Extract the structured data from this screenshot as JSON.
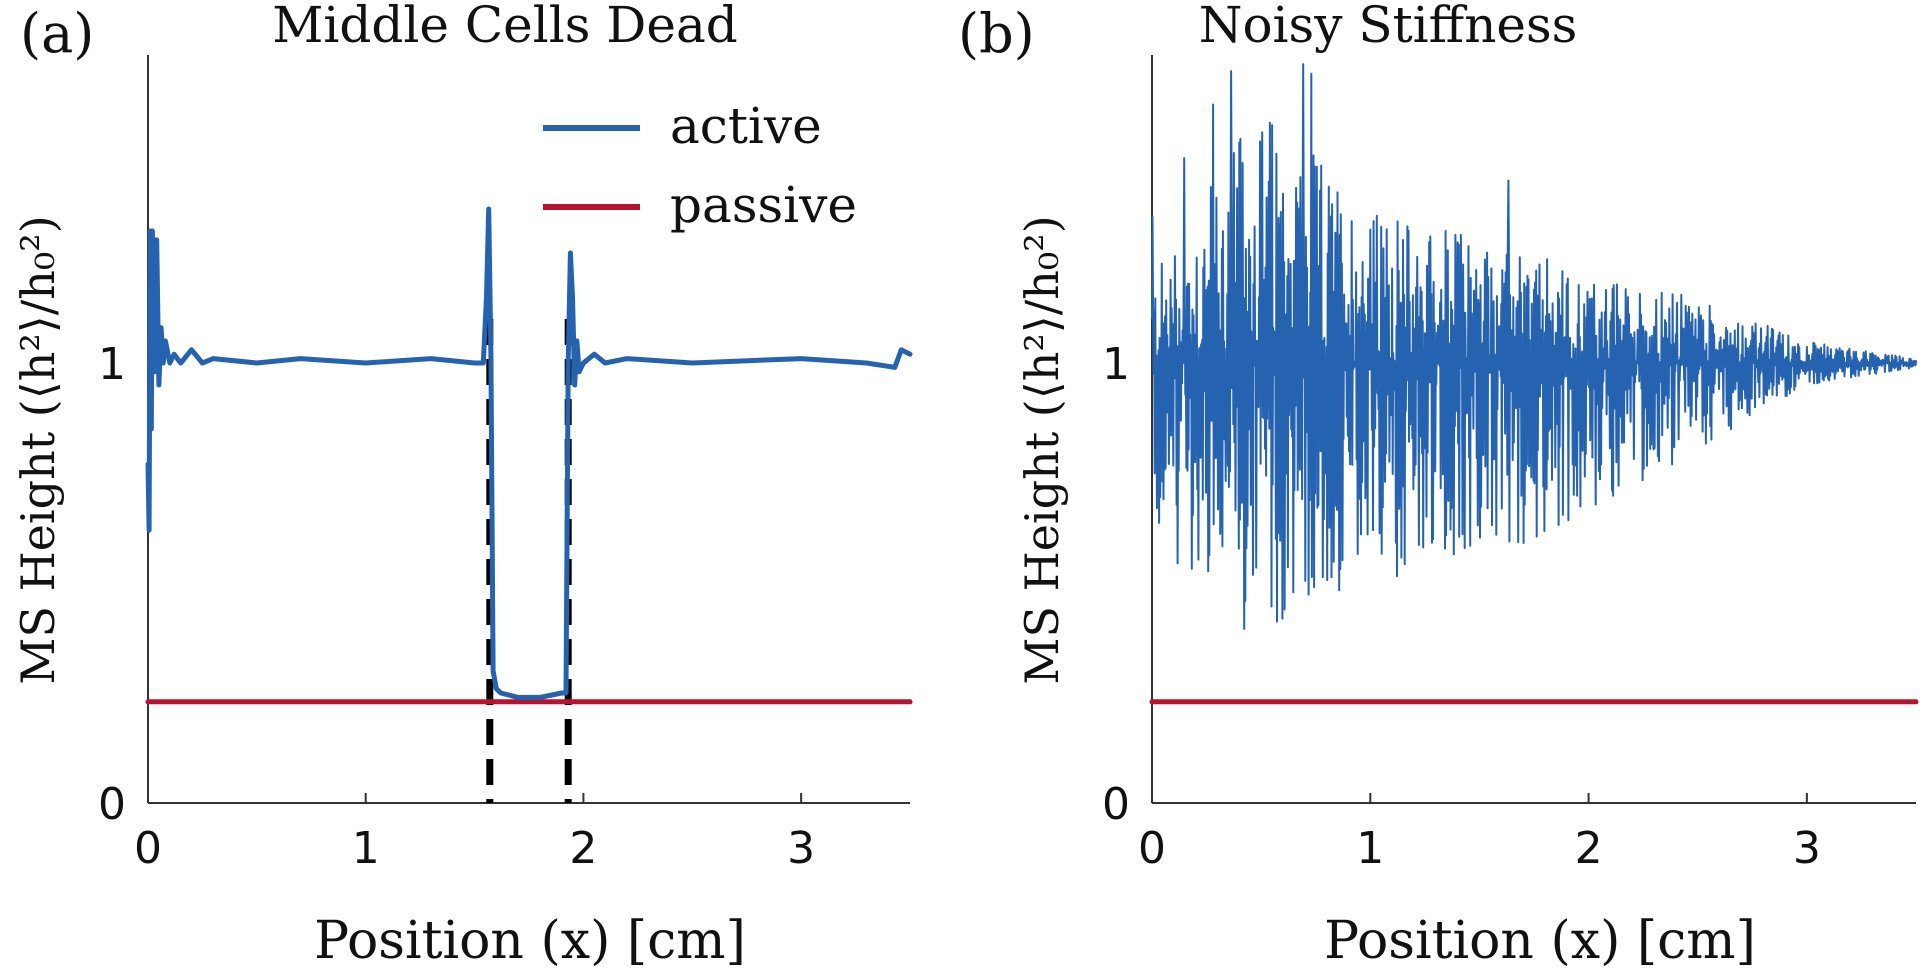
{
  "chart_data": [
    {
      "type": "line",
      "panel_label": "(a)",
      "title": "Middle Cells Dead",
      "xlabel": "Position (x) [cm]",
      "ylabel": "MS Height (⟨h²⟩/h₀²)",
      "xlim": [
        0,
        3.5
      ],
      "ylim": [
        0,
        1.7
      ],
      "xticks": [
        0,
        1,
        2,
        3
      ],
      "xtick_labels": [
        "0",
        "1",
        "2",
        "3"
      ],
      "yticks": [
        0,
        1
      ],
      "ytick_labels": [
        "0",
        "1"
      ],
      "legend": {
        "placement": "top-right",
        "entries": [
          "active",
          "passive"
        ]
      },
      "series": [
        {
          "name": "active",
          "color": "#2563b0",
          "x": [
            0.0,
            0.005,
            0.01,
            0.015,
            0.02,
            0.03,
            0.04,
            0.05,
            0.06,
            0.07,
            0.08,
            0.1,
            0.12,
            0.15,
            0.2,
            0.25,
            0.3,
            0.5,
            0.7,
            1.0,
            1.3,
            1.5,
            1.54,
            1.555,
            1.565,
            1.575,
            1.585,
            1.6,
            1.62,
            1.7,
            1.8,
            1.9,
            1.92,
            1.93,
            1.94,
            1.95,
            1.96,
            1.97,
            1.98,
            2.0,
            2.05,
            2.1,
            2.2,
            2.5,
            3.0,
            3.3,
            3.43,
            3.46,
            3.5
          ],
          "y": [
            0.77,
            0.62,
            1.3,
            0.85,
            1.3,
            0.98,
            1.28,
            0.95,
            1.08,
            1.0,
            1.05,
            1.0,
            1.02,
            1.0,
            1.03,
            1.0,
            1.01,
            1.0,
            1.01,
            1.0,
            1.01,
            1.0,
            1.0,
            1.15,
            1.35,
            1.02,
            0.3,
            0.26,
            0.25,
            0.24,
            0.24,
            0.25,
            0.25,
            1.0,
            1.25,
            1.15,
            0.95,
            1.05,
            0.98,
            1.0,
            1.02,
            1.0,
            1.01,
            1.0,
            1.01,
            1.0,
            0.99,
            1.03,
            1.02
          ]
        },
        {
          "name": "passive",
          "color": "#b8132e",
          "x": [
            0.0,
            3.5
          ],
          "y": [
            0.23,
            0.23
          ]
        }
      ],
      "vlines": [
        1.57,
        1.93
      ]
    },
    {
      "type": "line",
      "panel_label": "(b)",
      "title": "Noisy Stiffness",
      "xlabel": "Position (x) [cm]",
      "ylabel": "MS Height (⟨h²⟩/h₀²)",
      "xlim": [
        0,
        3.5
      ],
      "ylim": [
        0,
        1.7
      ],
      "xticks": [
        0,
        1,
        2,
        3
      ],
      "xtick_labels": [
        "0",
        "1",
        "2",
        "3"
      ],
      "yticks": [
        0,
        1
      ],
      "ytick_labels": [
        "0",
        "1"
      ],
      "series": [
        {
          "name": "active",
          "color": "#2563b0",
          "description_of_values": "noisy signal oscillating about 1.0; envelope shrinks from about 0.35-1.6 near x=0 to about 0.98-1.02 near x=3.5",
          "envelope_x": [
            0.0,
            0.5,
            1.0,
            1.5,
            2.0,
            2.5,
            3.0,
            3.5
          ],
          "envelope_upper": [
            1.2,
            1.6,
            1.35,
            1.3,
            1.2,
            1.15,
            1.05,
            1.01
          ],
          "envelope_lower": [
            0.6,
            0.35,
            0.5,
            0.55,
            0.65,
            0.8,
            0.95,
            0.99
          ]
        },
        {
          "name": "passive",
          "color": "#b8132e",
          "x": [
            0.0,
            3.5
          ],
          "y": [
            0.23,
            0.23
          ]
        }
      ]
    }
  ]
}
